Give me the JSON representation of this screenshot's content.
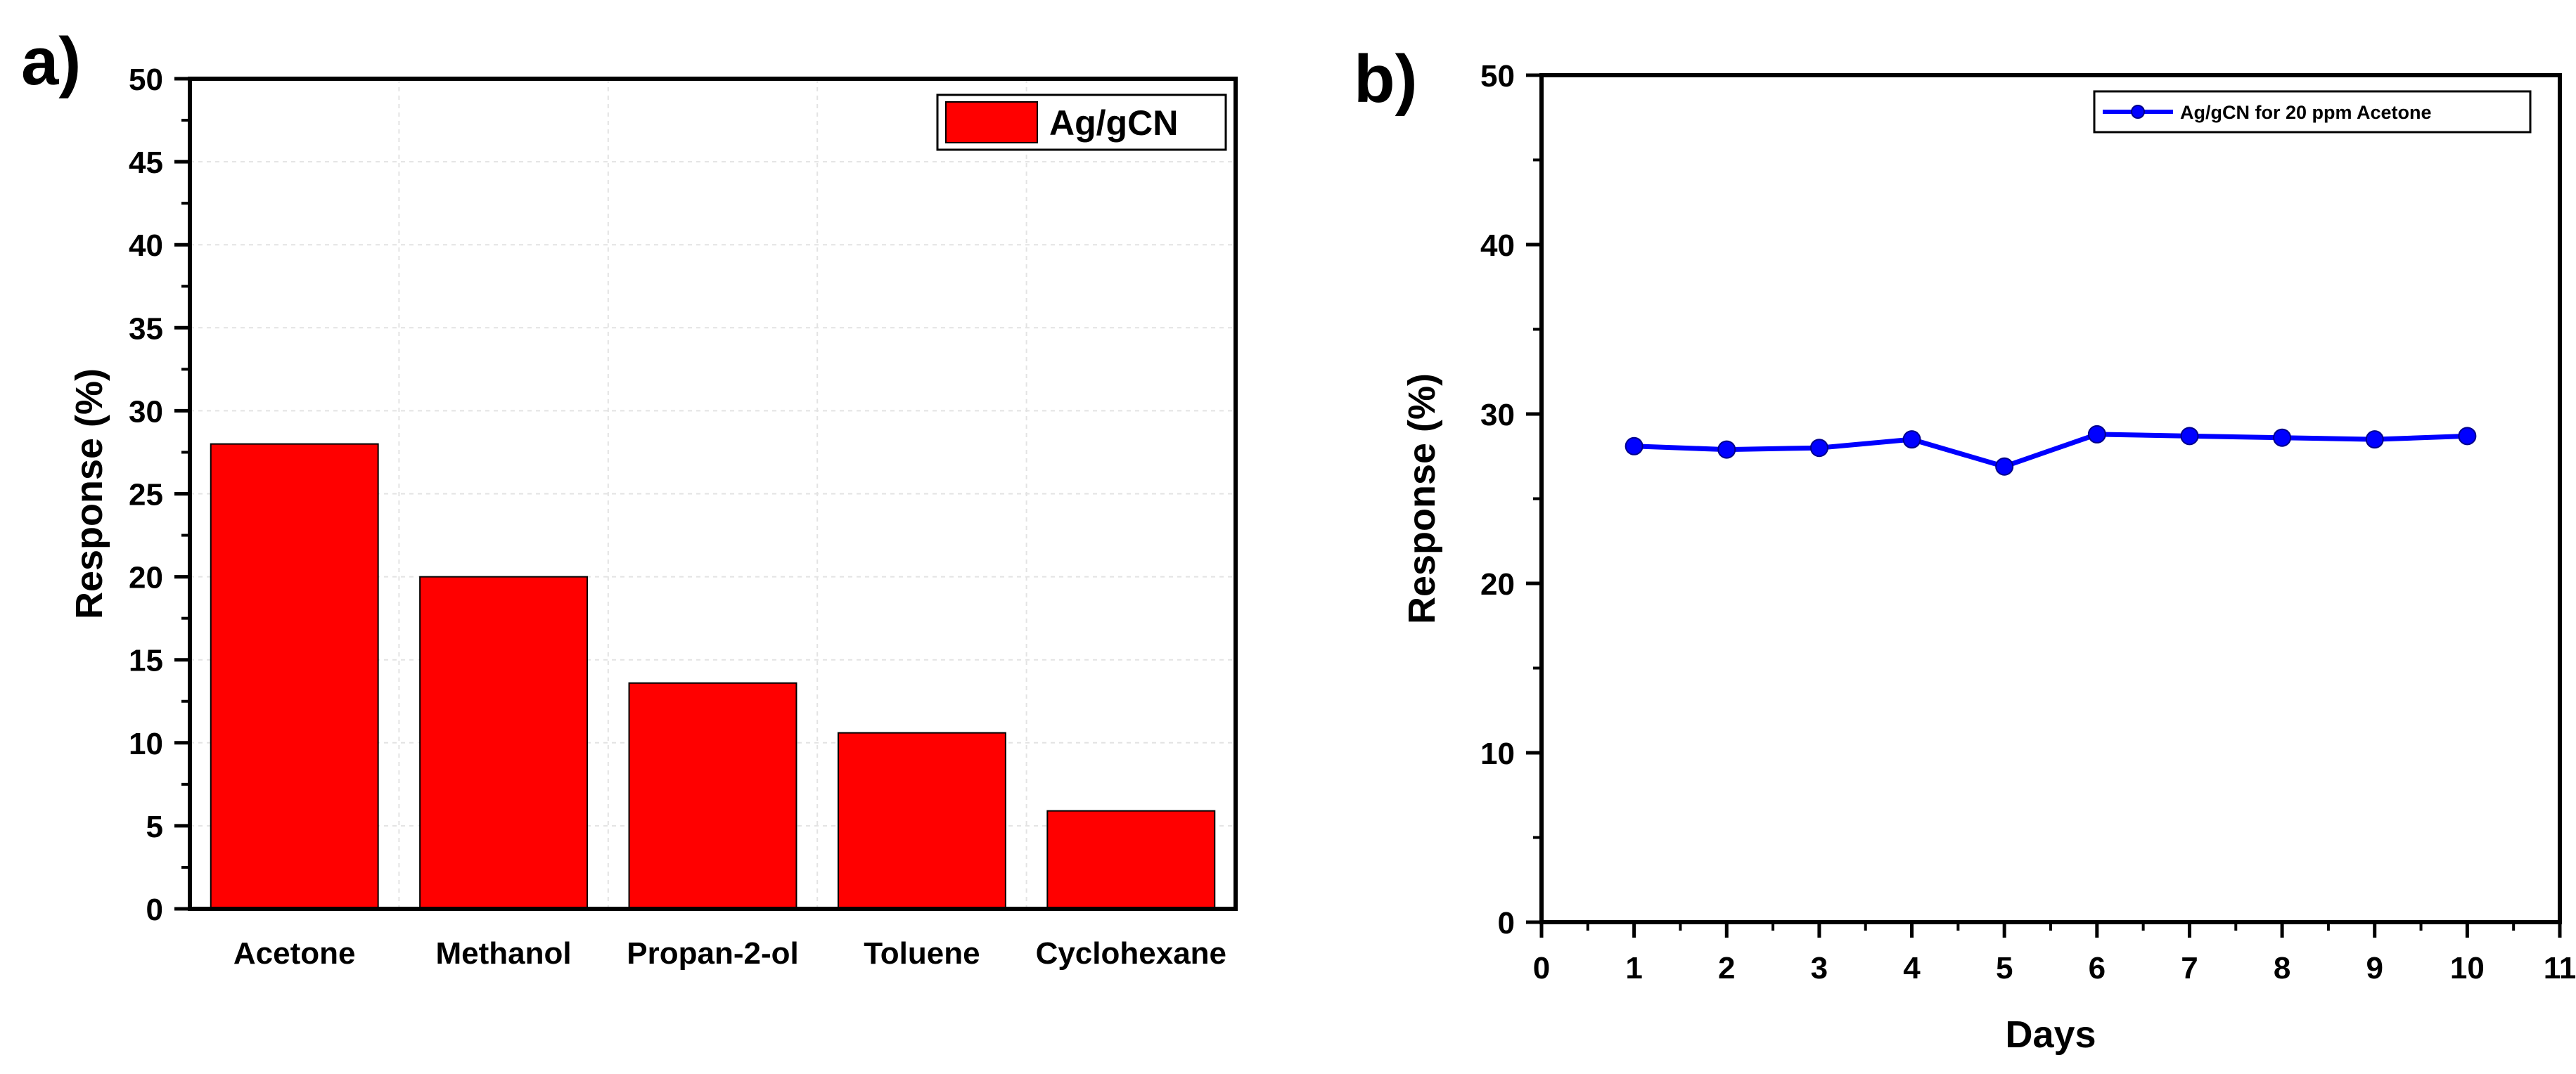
{
  "chart_data": [
    {
      "panel_label": "a)",
      "type": "bar",
      "categories": [
        "Acetone",
        "Methanol",
        "Propan-2-ol",
        "Toluene",
        "Cyclohexane"
      ],
      "series": [
        {
          "name": "Ag/gCN",
          "values": [
            28.0,
            20.0,
            13.6,
            10.6,
            5.9
          ],
          "color": "#ff0000"
        }
      ],
      "title": "",
      "xlabel": "",
      "ylabel": "Response (%)",
      "ylim": [
        0,
        50
      ],
      "yticks": [
        0,
        5,
        10,
        15,
        20,
        25,
        30,
        35,
        40,
        45,
        50
      ],
      "ytick_labels": [
        "0",
        "5",
        "10",
        "15",
        "20",
        "25",
        "30",
        "35",
        "40",
        "45",
        "50"
      ],
      "grid": true,
      "legend": {
        "placement": "top-right",
        "entries": [
          "Ag/gCN"
        ]
      }
    },
    {
      "panel_label": "b)",
      "type": "line",
      "series": [
        {
          "name": "Ag/gCN for 20 ppm Acetone",
          "x": [
            1,
            2,
            3,
            4,
            5,
            6,
            7,
            8,
            9,
            10
          ],
          "y": [
            28.1,
            27.9,
            28.0,
            28.5,
            26.9,
            28.8,
            28.7,
            28.6,
            28.5,
            28.7
          ],
          "color": "#0000ff"
        }
      ],
      "title": "",
      "xlabel": "Days",
      "ylabel": "Response (%)",
      "xlim": [
        0,
        11
      ],
      "ylim": [
        0,
        50
      ],
      "xticks": [
        0,
        1,
        2,
        3,
        4,
        5,
        6,
        7,
        8,
        9,
        10,
        11
      ],
      "xtick_labels": [
        "0",
        "1",
        "2",
        "3",
        "4",
        "5",
        "6",
        "7",
        "8",
        "9",
        "10",
        "11"
      ],
      "yticks": [
        0,
        10,
        20,
        30,
        40,
        50
      ],
      "ytick_labels": [
        "0",
        "10",
        "20",
        "30",
        "40",
        "50"
      ],
      "grid": false,
      "legend": {
        "placement": "top-right",
        "entries": [
          "Ag/gCN for 20 ppm Acetone"
        ]
      }
    }
  ]
}
